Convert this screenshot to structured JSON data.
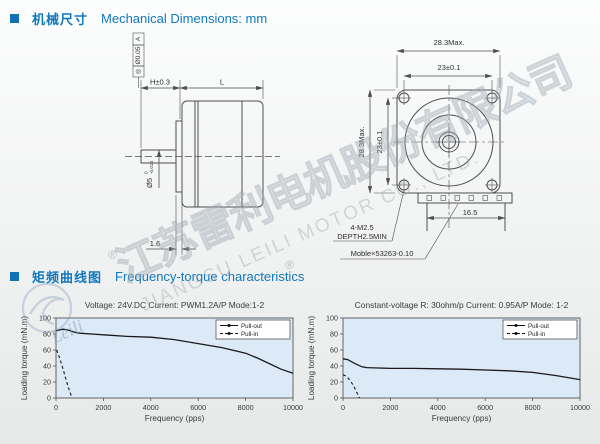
{
  "header": {
    "mech_cn": "机械尺寸",
    "mech_en": "Mechanical Dimensions: mm",
    "freq_cn": "矩频曲线图",
    "freq_en": "Frequency-torque characteristics"
  },
  "side_view": {
    "tol_symbol": "◎",
    "tol_value": "Ø0.05",
    "datum": "A",
    "dim_h": "H±0.3",
    "dim_l": "L",
    "shaft": "Ø5",
    "shaft_tol_top": "0",
    "shaft_tol_bottom": "-0.013",
    "dim_flange": "1.6"
  },
  "front_view": {
    "dim_width": "28.3Max.",
    "dim_holes_h": "23±0.1",
    "dim_height": "28.3Max.",
    "dim_holes_v": "23±0.1",
    "dim_connector": "16.5",
    "screw_label_1": "4-M2.5",
    "screw_label_2": "DEPTH2.5MIN",
    "connector_label": "Moble×53263-0.10"
  },
  "watermark": {
    "cn": "江苏雷利电机股份有限公司",
    "en": "JIANGSU LEILI MOTOR CO., LTD.",
    "logo_text": "Leili",
    "reg": "®"
  },
  "colors": {
    "accent": "#1178be",
    "plot_bg": "#dce9f6",
    "curve": "#1a1a1a",
    "drawing": "#4f4f4f"
  },
  "chart_data": [
    {
      "type": "line",
      "title": "Voltage: 24V.DC Current: PWM1.2A/P Mode:1-2",
      "xlabel": "Frequency (pps)",
      "ylabel": "Loading torque (mN.m)",
      "xlim": [
        0,
        10000
      ],
      "ylim": [
        0,
        100
      ],
      "xticks": [
        0,
        2000,
        4000,
        6000,
        8000,
        10000
      ],
      "yticks": [
        0,
        20,
        40,
        60,
        80,
        100
      ],
      "grid": false,
      "legend_position": "top-right",
      "series": [
        {
          "name": "Pull-out",
          "style": "solid",
          "x": [
            0,
            300,
            500,
            800,
            1000,
            1500,
            2000,
            3000,
            4000,
            5000,
            6000,
            7000,
            8000,
            8500,
            9000,
            9500,
            10000
          ],
          "y": [
            84,
            86,
            85,
            82,
            81,
            80,
            79,
            77,
            76,
            73,
            68,
            63,
            56,
            50,
            43,
            36,
            31
          ]
        },
        {
          "name": "Pull-in",
          "style": "dashed",
          "x": [
            30,
            150,
            300,
            450,
            580,
            680
          ],
          "y": [
            60,
            50,
            36,
            20,
            8,
            0
          ]
        }
      ]
    },
    {
      "type": "line",
      "title": "Constant-voltage R: 30ohm/p Current: 0.95A/P Mode: 1-2",
      "xlabel": "Frequency (pps)",
      "ylabel": "Loading torque (mN.m)",
      "xlim": [
        0,
        10000
      ],
      "ylim": [
        0,
        100
      ],
      "xticks": [
        0,
        2000,
        4000,
        6000,
        8000,
        10000
      ],
      "yticks": [
        0,
        20,
        40,
        60,
        80,
        100
      ],
      "grid": false,
      "legend_position": "top-right",
      "series": [
        {
          "name": "Pull-out",
          "style": "solid",
          "x": [
            0,
            200,
            500,
            800,
            1000,
            2000,
            3000,
            4000,
            5000,
            6000,
            7000,
            8000,
            9000,
            10000
          ],
          "y": [
            49,
            48,
            43,
            39,
            38,
            37,
            37,
            36.5,
            36,
            35,
            34,
            32,
            28,
            23
          ]
        },
        {
          "name": "Pull-in",
          "style": "dashed",
          "x": [
            0,
            150,
            300,
            450,
            600,
            700
          ],
          "y": [
            29,
            27,
            22,
            15,
            6,
            0
          ]
        }
      ]
    }
  ]
}
